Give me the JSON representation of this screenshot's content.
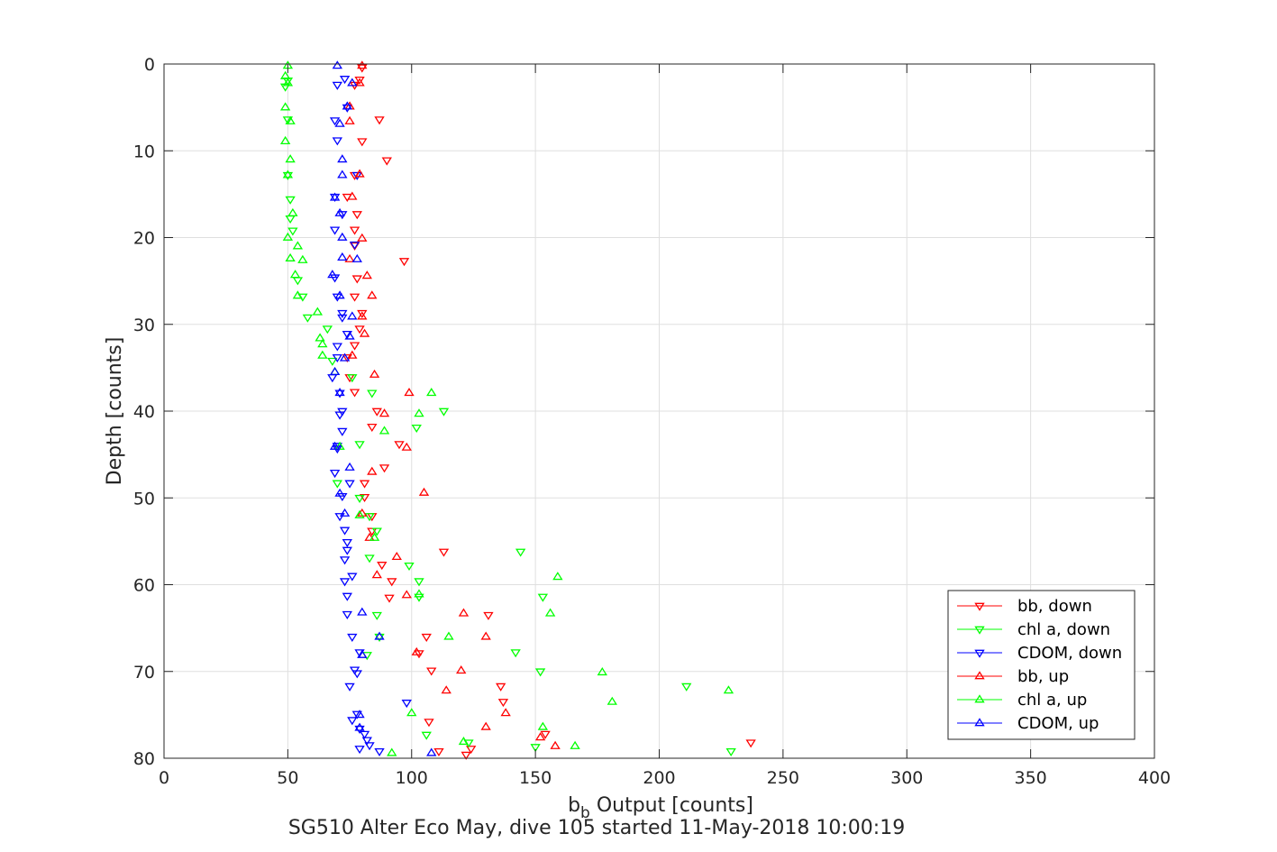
{
  "chart_data": {
    "type": "scatter",
    "xlabel_main": "b",
    "xlabel_sub": "b",
    "xlabel_rest": " Output [counts]",
    "ylabel": "Depth [counts]",
    "caption": "SG510 Alter Eco May, dive 105 started 11-May-2018 10:00:19",
    "xlim": [
      0,
      400
    ],
    "ylim": [
      0,
      80
    ],
    "y_reversed": true,
    "grid": true,
    "legend_position": "bottom-right",
    "xticks": [
      0,
      50,
      100,
      150,
      200,
      250,
      300,
      350,
      400
    ],
    "yticks": [
      0,
      10,
      20,
      30,
      40,
      50,
      60,
      70,
      80
    ],
    "series": [
      {
        "name": "bb, down",
        "color": "#ff0000",
        "marker": "triangle-down",
        "points": [
          [
            80,
            0.4
          ],
          [
            79,
            1.8
          ],
          [
            77,
            2.4
          ],
          [
            87,
            6.4
          ],
          [
            80,
            8.9
          ],
          [
            90,
            11.1
          ],
          [
            77,
            12.8
          ],
          [
            74,
            15.3
          ],
          [
            78,
            17.3
          ],
          [
            77,
            19.1
          ],
          [
            77,
            20.9
          ],
          [
            97,
            22.7
          ],
          [
            78,
            24.7
          ],
          [
            77,
            26.8
          ],
          [
            80,
            28.7
          ],
          [
            79,
            30.5
          ],
          [
            77,
            32.4
          ],
          [
            74,
            33.8
          ],
          [
            75,
            36.1
          ],
          [
            77,
            37.8
          ],
          [
            86,
            40.0
          ],
          [
            84,
            41.8
          ],
          [
            95,
            43.8
          ],
          [
            89,
            46.5
          ],
          [
            81,
            48.3
          ],
          [
            81,
            49.9
          ],
          [
            84,
            52.1
          ],
          [
            84,
            53.8
          ],
          [
            113,
            56.2
          ],
          [
            88,
            57.7
          ],
          [
            92,
            59.6
          ],
          [
            91,
            61.5
          ],
          [
            131,
            63.5
          ],
          [
            106,
            66.0
          ],
          [
            103,
            67.9
          ],
          [
            108,
            69.9
          ],
          [
            136,
            71.7
          ],
          [
            137,
            73.5
          ],
          [
            107,
            75.8
          ],
          [
            154,
            77.2
          ],
          [
            237,
            78.2
          ],
          [
            111,
            79.2
          ],
          [
            124,
            78.9
          ],
          [
            122,
            79.6
          ]
        ]
      },
      {
        "name": "chl a, down",
        "color": "#00ff00",
        "marker": "triangle-down",
        "points": [
          [
            50,
            1.9
          ],
          [
            49,
            2.6
          ],
          [
            50,
            6.4
          ],
          [
            50,
            12.8
          ],
          [
            51,
            15.6
          ],
          [
            51,
            17.8
          ],
          [
            52,
            19.2
          ],
          [
            54,
            24.9
          ],
          [
            56,
            26.8
          ],
          [
            58,
            29.2
          ],
          [
            66,
            30.5
          ],
          [
            68,
            34.2
          ],
          [
            76,
            36.1
          ],
          [
            84,
            37.9
          ],
          [
            113,
            40.0
          ],
          [
            102,
            41.9
          ],
          [
            79,
            43.8
          ],
          [
            70,
            48.3
          ],
          [
            79,
            50.0
          ],
          [
            83,
            52.1
          ],
          [
            86,
            53.8
          ],
          [
            144,
            56.2
          ],
          [
            83,
            56.9
          ],
          [
            99,
            57.8
          ],
          [
            103,
            59.6
          ],
          [
            153,
            61.4
          ],
          [
            103,
            61.4
          ],
          [
            86,
            63.5
          ],
          [
            87,
            66.0
          ],
          [
            142,
            67.8
          ],
          [
            82,
            68.1
          ],
          [
            152,
            70.0
          ],
          [
            211,
            71.7
          ],
          [
            123,
            78.2
          ],
          [
            150,
            78.7
          ],
          [
            106,
            77.3
          ],
          [
            229,
            79.2
          ]
        ]
      },
      {
        "name": "CDOM, down",
        "color": "#0000ff",
        "marker": "triangle-down",
        "points": [
          [
            73,
            1.7
          ],
          [
            70,
            2.4
          ],
          [
            74,
            5.0
          ],
          [
            69,
            6.5
          ],
          [
            70,
            8.8
          ],
          [
            78,
            12.8
          ],
          [
            69,
            15.3
          ],
          [
            72,
            17.3
          ],
          [
            69,
            19.1
          ],
          [
            77,
            20.8
          ],
          [
            69,
            24.6
          ],
          [
            70,
            26.8
          ],
          [
            72,
            28.7
          ],
          [
            72,
            29.2
          ],
          [
            74,
            31.1
          ],
          [
            70,
            32.5
          ],
          [
            70,
            33.8
          ],
          [
            68,
            36.1
          ],
          [
            71,
            37.9
          ],
          [
            72,
            40.0
          ],
          [
            71,
            40.4
          ],
          [
            72,
            42.3
          ],
          [
            70,
            44.0
          ],
          [
            70,
            44.3
          ],
          [
            69,
            47.1
          ],
          [
            75,
            48.3
          ],
          [
            72,
            49.8
          ],
          [
            71,
            52.1
          ],
          [
            73,
            53.7
          ],
          [
            74,
            55.1
          ],
          [
            74,
            56.0
          ],
          [
            73,
            57.1
          ],
          [
            76,
            59.0
          ],
          [
            73,
            59.6
          ],
          [
            74,
            61.3
          ],
          [
            74,
            63.4
          ],
          [
            76,
            66.0
          ],
          [
            79,
            67.8
          ],
          [
            77,
            69.8
          ],
          [
            78,
            70.2
          ],
          [
            75,
            71.7
          ],
          [
            98,
            73.6
          ],
          [
            76,
            75.6
          ],
          [
            78,
            74.9
          ],
          [
            79,
            76.6
          ],
          [
            81,
            77.2
          ],
          [
            82,
            77.9
          ],
          [
            83,
            78.5
          ],
          [
            79,
            78.9
          ],
          [
            87,
            79.2
          ]
        ]
      },
      {
        "name": "bb, up",
        "color": "#ff0000",
        "marker": "triangle-up",
        "points": [
          [
            80,
            0.2
          ],
          [
            79,
            2.2
          ],
          [
            75,
            4.9
          ],
          [
            75,
            6.6
          ],
          [
            79,
            12.7
          ],
          [
            76,
            15.3
          ],
          [
            80,
            20.1
          ],
          [
            75,
            22.5
          ],
          [
            82,
            24.4
          ],
          [
            84,
            26.7
          ],
          [
            80,
            29.1
          ],
          [
            81,
            31.1
          ],
          [
            76,
            33.6
          ],
          [
            85,
            35.8
          ],
          [
            99,
            37.9
          ],
          [
            89,
            40.3
          ],
          [
            98,
            44.2
          ],
          [
            84,
            47.0
          ],
          [
            80,
            51.8
          ],
          [
            83,
            54.6
          ],
          [
            94,
            56.8
          ],
          [
            86,
            58.9
          ],
          [
            98,
            61.2
          ],
          [
            121,
            63.3
          ],
          [
            130,
            66.0
          ],
          [
            102,
            67.8
          ],
          [
            120,
            69.9
          ],
          [
            114,
            72.2
          ],
          [
            138,
            74.8
          ],
          [
            130,
            76.4
          ],
          [
            152,
            77.6
          ],
          [
            158,
            78.6
          ],
          [
            105,
            49.4
          ]
        ]
      },
      {
        "name": "chl a, up",
        "color": "#00ff00",
        "marker": "triangle-up",
        "points": [
          [
            50,
            0.2
          ],
          [
            49,
            1.4
          ],
          [
            50,
            2.2
          ],
          [
            49,
            5.0
          ],
          [
            51,
            6.6
          ],
          [
            49,
            8.9
          ],
          [
            51,
            11.0
          ],
          [
            50,
            12.8
          ],
          [
            52,
            17.2
          ],
          [
            50,
            20.0
          ],
          [
            54,
            21.0
          ],
          [
            51,
            22.4
          ],
          [
            56,
            22.6
          ],
          [
            53,
            24.3
          ],
          [
            54,
            26.7
          ],
          [
            62,
            28.6
          ],
          [
            63,
            31.6
          ],
          [
            64,
            32.3
          ],
          [
            64,
            33.6
          ],
          [
            69,
            35.5
          ],
          [
            108,
            37.9
          ],
          [
            103,
            40.3
          ],
          [
            89,
            42.3
          ],
          [
            71,
            44.1
          ],
          [
            79,
            52.0
          ],
          [
            85,
            54.6
          ],
          [
            159,
            59.1
          ],
          [
            103,
            61.1
          ],
          [
            156,
            63.3
          ],
          [
            115,
            66.0
          ],
          [
            177,
            70.1
          ],
          [
            228,
            72.2
          ],
          [
            181,
            73.5
          ],
          [
            100,
            74.8
          ],
          [
            153,
            76.4
          ],
          [
            166,
            78.6
          ],
          [
            121,
            78.1
          ],
          [
            92,
            79.4
          ]
        ]
      },
      {
        "name": "CDOM, up",
        "color": "#0000ff",
        "marker": "triangle-up",
        "points": [
          [
            70,
            0.2
          ],
          [
            76,
            2.2
          ],
          [
            74,
            4.9
          ],
          [
            71,
            6.9
          ],
          [
            72,
            11.0
          ],
          [
            72,
            12.8
          ],
          [
            69,
            15.4
          ],
          [
            71,
            17.2
          ],
          [
            72,
            20.0
          ],
          [
            72,
            22.3
          ],
          [
            78,
            22.5
          ],
          [
            68,
            24.3
          ],
          [
            71,
            26.7
          ],
          [
            76,
            29.1
          ],
          [
            75,
            31.4
          ],
          [
            73,
            33.9
          ],
          [
            69,
            35.5
          ],
          [
            71,
            37.9
          ],
          [
            69,
            44.1
          ],
          [
            75,
            46.5
          ],
          [
            71,
            49.5
          ],
          [
            73,
            51.8
          ],
          [
            80,
            63.2
          ],
          [
            87,
            66.0
          ],
          [
            80,
            68.1
          ],
          [
            79,
            75.0
          ],
          [
            79,
            76.5
          ],
          [
            108,
            79.4
          ]
        ]
      }
    ]
  }
}
